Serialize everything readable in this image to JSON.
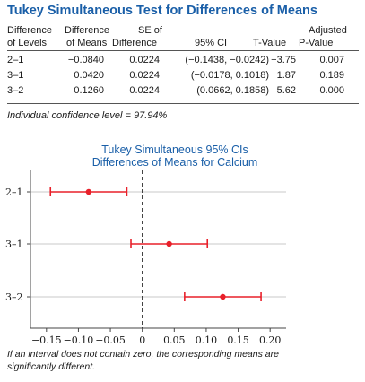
{
  "table": {
    "title": "Tukey Simultaneous Test for Differences of Means",
    "headers": {
      "levels": [
        "Difference",
        "of Levels"
      ],
      "diff": [
        "Difference",
        "of Means"
      ],
      "se": [
        "SE of",
        "Difference"
      ],
      "ci": [
        "",
        "95% CI"
      ],
      "t": [
        "",
        "T-Value"
      ],
      "p": [
        "Adjusted",
        "P-Value"
      ]
    },
    "rows": [
      {
        "level": "2–1",
        "diff": "−0.0840",
        "se": "0.0224",
        "ci": "(−0.1438, −0.0242)",
        "t": "−3.75",
        "p": "0.007"
      },
      {
        "level": "3–1",
        "diff": "0.0420",
        "se": "0.0224",
        "ci": "(−0.0178, 0.1018)",
        "t": "1.87",
        "p": "0.189"
      },
      {
        "level": "3–2",
        "diff": "0.1260",
        "se": "0.0224",
        "ci": "(0.0662, 0.1858)",
        "t": "5.62",
        "p": "0.000"
      }
    ],
    "note": "Individual confidence level = 97.94%"
  },
  "chart_data": {
    "type": "scatter",
    "title": "Tukey Simultaneous 95% CIs",
    "subtitle": "Differences of Means for Calcium",
    "categories": [
      "2–1",
      "3–1",
      "3–2"
    ],
    "estimates": [
      -0.084,
      0.042,
      0.126
    ],
    "lower": [
      -0.1438,
      -0.0178,
      0.0662
    ],
    "upper": [
      -0.0242,
      0.1018,
      0.1858
    ],
    "xticks": [
      -0.15,
      -0.1,
      -0.05,
      0,
      0.05,
      0.1,
      0.15,
      0.2
    ],
    "xtick_labels": [
      "−0.15",
      "−0.10",
      "−0.05",
      "0",
      "0.05",
      "0.10",
      "0.15",
      "0.20"
    ],
    "xlim": [
      -0.175,
      0.225
    ],
    "reference_line": 0,
    "grid": true,
    "colors": {
      "interval": "#e8202a",
      "grid": "#c8c8c8",
      "title": "#1a5fa8"
    }
  },
  "footnote": "If an interval does not contain zero, the corresponding means are significantly different."
}
